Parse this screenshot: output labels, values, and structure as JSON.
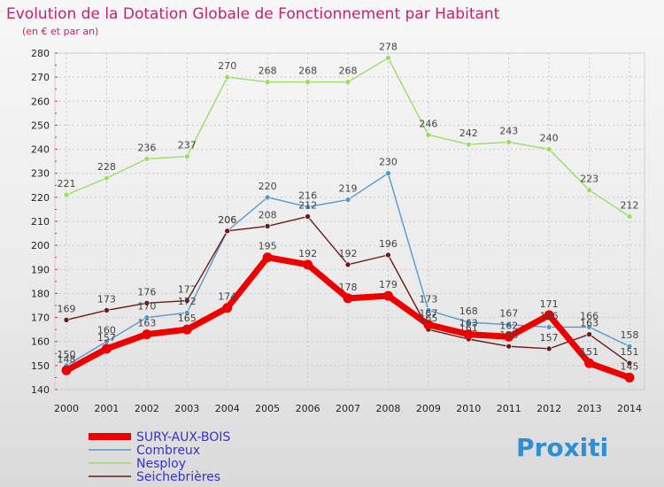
{
  "chart_data": {
    "type": "line",
    "title": "Evolution de la Dotation Globale de Fonctionnement par Habitant",
    "subtitle": "(en € et par an)",
    "x": [
      "2000",
      "2001",
      "2002",
      "2003",
      "2004",
      "2005",
      "2006",
      "2007",
      "2008",
      "2009",
      "2010",
      "2011",
      "2012",
      "2013",
      "2014"
    ],
    "ylim": [
      140,
      280
    ],
    "yticks": [
      140,
      150,
      160,
      170,
      180,
      190,
      200,
      210,
      220,
      230,
      240,
      250,
      260,
      270,
      280
    ],
    "grid": true,
    "series": [
      {
        "name": "Nesploy",
        "color": "#99dd66",
        "values": [
          221,
          228,
          236,
          237,
          270,
          268,
          268,
          268,
          278,
          246,
          242,
          243,
          240,
          223,
          212
        ]
      },
      {
        "name": "Combreux",
        "color": "#5599cc",
        "values": [
          150,
          160,
          170,
          172,
          206,
          220,
          216,
          219,
          230,
          173,
          168,
          167,
          166,
          166,
          158
        ]
      },
      {
        "name": "Seichebrières",
        "color": "#6b1a1a",
        "values": [
          169,
          173,
          176,
          177,
          206,
          208,
          212,
          192,
          196,
          165,
          161,
          158,
          157,
          163,
          151
        ]
      },
      {
        "name": "SURY-AUX-BOIS",
        "color": "#ee0000",
        "values": [
          148,
          157,
          163,
          165,
          174,
          195,
          192,
          178,
          179,
          167,
          163,
          162,
          171,
          151,
          145
        ]
      }
    ],
    "legend_order": [
      "SURY-AUX-BOIS",
      "Combreux",
      "Nesploy",
      "Seichebrières"
    ],
    "legend_colors": {
      "SURY-AUX-BOIS": "#3333cc",
      "Combreux": "#3333cc",
      "Nesploy": "#3333cc",
      "Seichebrières": "#3333cc"
    }
  },
  "brand": {
    "text": "Proxiti"
  }
}
